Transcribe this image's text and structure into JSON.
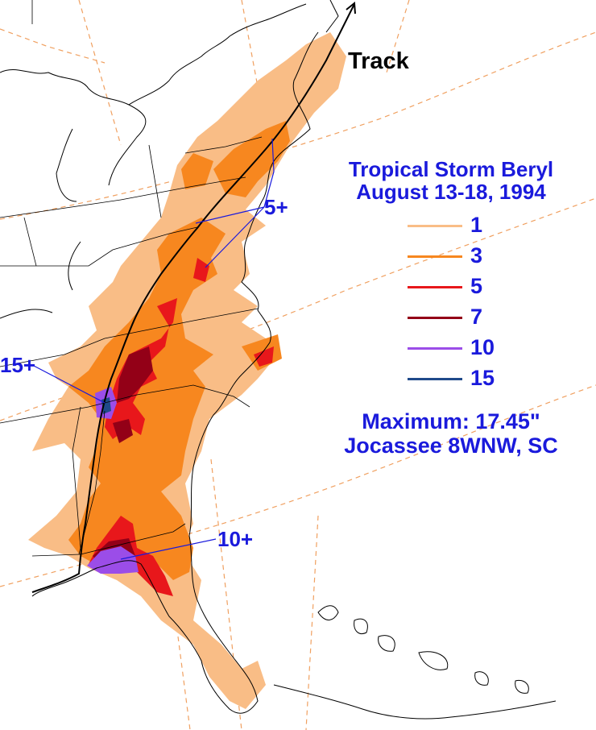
{
  "track_label": "Track",
  "storm": {
    "name": "Tropical Storm Beryl",
    "dates": "August 13-18, 1994"
  },
  "legend": [
    {
      "value": "1",
      "color": "#f9bd86"
    },
    {
      "value": "3",
      "color": "#f7871f"
    },
    {
      "value": "5",
      "color": "#e8171b"
    },
    {
      "value": "7",
      "color": "#930017"
    },
    {
      "value": "10",
      "color": "#9b4de8"
    },
    {
      "value": "15",
      "color": "#1f4a8a"
    }
  ],
  "maximum": {
    "label": "Maximum:  17.45\"",
    "station": "Jocassee 8WNW, SC"
  },
  "callouts": {
    "five": "5+",
    "fifteen": "15+",
    "ten": "10+"
  },
  "colors": {
    "label_blue": "#1a1adc",
    "graticule": "#f0a060",
    "coast": "#000000",
    "track": "#000000"
  }
}
